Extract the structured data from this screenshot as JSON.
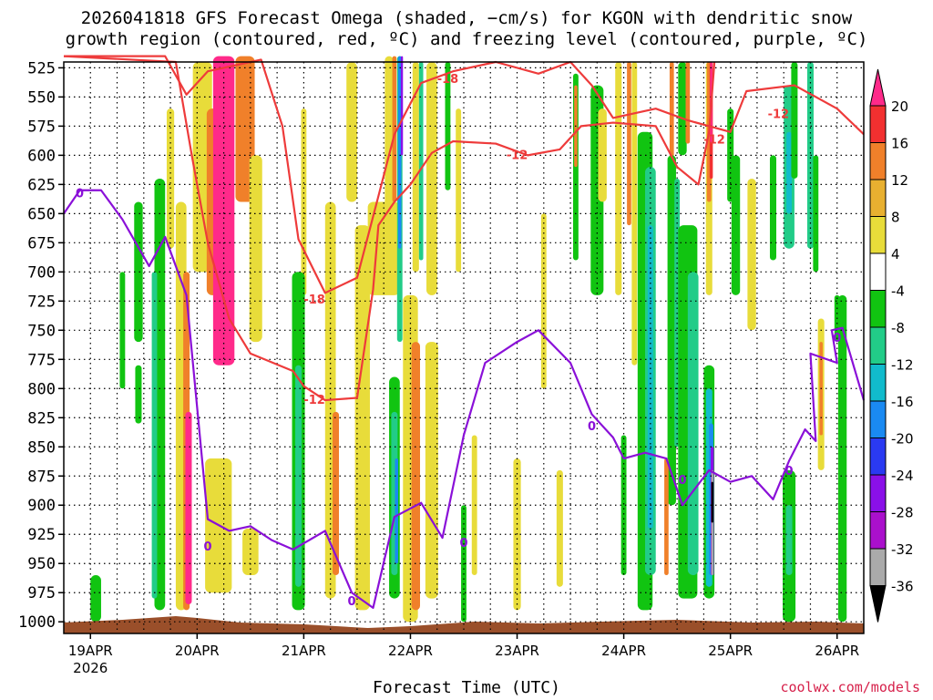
{
  "title_line1": "2026041818 GFS Forecast Omega (shaded, −cm/s) for KGON with dendritic snow",
  "title_line2": "growth region (contoured, red, ºC) and freezing level (contoured, purple, ºC)",
  "credit": "coolwx.com/models",
  "chart_data": {
    "type": "heatmap",
    "title": "2026041818 GFS Forecast Omega (shaded, −cm/s) for KGON with dendritic snow growth region (contoured, red, ºC) and freezing level (contoured, purple, ºC)",
    "xlabel": "Forecast Time (UTC)",
    "ylabel": "",
    "x_ticks": [
      "19APR",
      "20APR",
      "21APR",
      "22APR",
      "23APR",
      "24APR",
      "25APR",
      "26APR"
    ],
    "x_tick_sub": "2026",
    "y_ticks": [
      525,
      550,
      575,
      600,
      625,
      650,
      675,
      700,
      725,
      750,
      775,
      800,
      825,
      850,
      875,
      900,
      925,
      950,
      975,
      1000
    ],
    "ylim": [
      1010,
      520
    ],
    "xlim_days": [
      18.75,
      26.25
    ],
    "grid": true,
    "colorbar": {
      "labels": [
        "20",
        "16",
        "12",
        "8",
        "4",
        "-4",
        "-8",
        "-12",
        "-16",
        "-20",
        "-24",
        "-28",
        "-32",
        "-36"
      ],
      "colors": [
        "#ff2a8a",
        "#f23030",
        "#f0802a",
        "#e8b030",
        "#e8dc3a",
        "#ffffff",
        "#11c411",
        "#22cc88",
        "#11bbcc",
        "#1a8af2",
        "#2a3af2",
        "#8a10e8",
        "#aa10cc",
        "#aaaaaa",
        "#000000"
      ]
    },
    "contours": {
      "dgz_labels": [
        "-18",
        "-18",
        "-12",
        "-12",
        "-12",
        "-12"
      ],
      "freezing_labels": [
        "0",
        "0",
        "0",
        "0",
        "0",
        "0",
        "0",
        "0"
      ],
      "dgz_upper": [
        [
          18.75,
          515
        ],
        [
          19.7,
          515
        ],
        [
          19.9,
          548
        ],
        [
          20.1,
          528
        ],
        [
          20.6,
          518
        ],
        [
          20.8,
          575
        ],
        [
          20.95,
          672
        ],
        [
          21.2,
          718
        ],
        [
          21.5,
          705
        ],
        [
          21.7,
          635
        ],
        [
          21.85,
          582
        ],
        [
          22.1,
          538
        ],
        [
          22.4,
          528
        ],
        [
          22.8,
          520
        ],
        [
          23.2,
          530
        ],
        [
          23.5,
          520
        ],
        [
          23.7,
          540
        ],
        [
          23.9,
          568
        ],
        [
          24.3,
          560
        ],
        [
          24.6,
          570
        ],
        [
          25.0,
          580
        ],
        [
          25.15,
          545
        ],
        [
          25.6,
          540
        ],
        [
          26.0,
          560
        ],
        [
          26.25,
          582
        ]
      ],
      "dgz_lower": [
        [
          18.75,
          515
        ],
        [
          19.8,
          520
        ],
        [
          19.95,
          600
        ],
        [
          20.1,
          675
        ],
        [
          20.3,
          740
        ],
        [
          20.5,
          770
        ],
        [
          20.9,
          785
        ],
        [
          21.0,
          798
        ],
        [
          21.2,
          810
        ],
        [
          21.5,
          808
        ],
        [
          21.65,
          715
        ],
        [
          21.7,
          660
        ],
        [
          21.85,
          640
        ],
        [
          22.0,
          625
        ],
        [
          22.2,
          598
        ],
        [
          22.4,
          588
        ],
        [
          22.8,
          590
        ],
        [
          23.1,
          600
        ],
        [
          23.4,
          595
        ],
        [
          23.6,
          575
        ],
        [
          23.9,
          572
        ],
        [
          24.3,
          575
        ],
        [
          24.5,
          610
        ],
        [
          24.7,
          625
        ],
        [
          24.8,
          580
        ],
        [
          24.85,
          520
        ]
      ],
      "freezing": [
        [
          18.75,
          650
        ],
        [
          18.9,
          630
        ],
        [
          19.1,
          630
        ],
        [
          19.3,
          655
        ],
        [
          19.55,
          695
        ],
        [
          19.7,
          670
        ],
        [
          19.9,
          720
        ],
        [
          20.1,
          912
        ],
        [
          20.3,
          922
        ],
        [
          20.5,
          918
        ],
        [
          20.7,
          930
        ],
        [
          20.9,
          938
        ],
        [
          21.2,
          922
        ],
        [
          21.45,
          975
        ],
        [
          21.65,
          988
        ],
        [
          21.85,
          910
        ],
        [
          22.1,
          898
        ],
        [
          22.3,
          928
        ],
        [
          22.5,
          840
        ],
        [
          22.7,
          778
        ],
        [
          23.0,
          760
        ],
        [
          23.2,
          750
        ],
        [
          23.5,
          778
        ],
        [
          23.7,
          822
        ],
        [
          23.9,
          842
        ],
        [
          24.0,
          860
        ],
        [
          24.2,
          855
        ],
        [
          24.4,
          860
        ],
        [
          24.55,
          900
        ],
        [
          24.8,
          870
        ],
        [
          25.0,
          880
        ],
        [
          25.2,
          875
        ],
        [
          25.4,
          895
        ],
        [
          25.55,
          862
        ],
        [
          25.7,
          835
        ],
        [
          25.8,
          845
        ],
        [
          25.75,
          770
        ],
        [
          26.0,
          778
        ],
        [
          25.95,
          750
        ],
        [
          26.05,
          748
        ],
        [
          26.25,
          810
        ]
      ]
    }
  }
}
